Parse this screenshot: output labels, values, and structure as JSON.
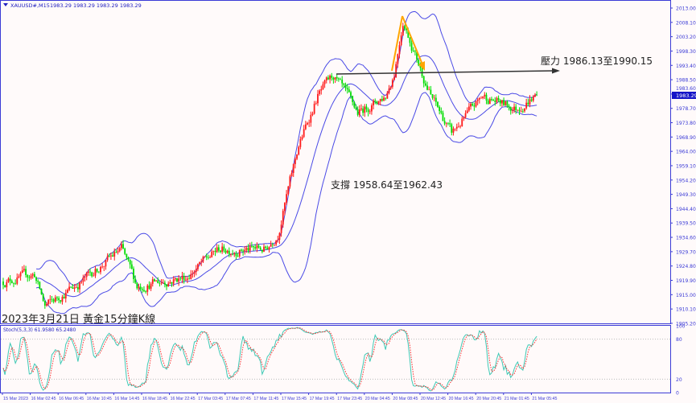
{
  "header": {
    "symbol": "XAUUSD#,M15",
    "ohlc": "1983.29 1983.29 1983.29 1983.29"
  },
  "chart_title": "2023年3月21日 黃金15分鐘K線",
  "indicator_label": "Stoch(5,3,3) 61.9580 65.2480",
  "current_price": "1983.29",
  "colors": {
    "bull": "#ff1a1a",
    "bear": "#00dd00",
    "bands": "#4a4ae6",
    "axis": "#3b3bd6",
    "stoch_main": "#3fc9b5",
    "stoch_signal": "#ff3030",
    "pattern": "#ffa500",
    "resistance_line": "#333333"
  },
  "chart_data": {
    "type": "candlestick",
    "timeframe": "M15",
    "indicators": [
      "Bollinger Bands",
      "Stochastic(5,3,3)"
    ],
    "price_ticks": [
      "2013.00",
      "2008.10",
      "2003.20",
      "1998.30",
      "1993.40",
      "1988.50",
      "1983.60",
      "1978.70",
      "1973.80",
      "1968.90",
      "1964.00",
      "1959.10",
      "1954.20",
      "1949.30",
      "1944.40",
      "1939.50",
      "1934.60",
      "1929.70",
      "1924.80",
      "1919.90",
      "1915.00",
      "1910.10",
      "1905.20"
    ],
    "ylim": [
      1905.2,
      2013.0
    ],
    "stoch_ticks": [
      "100",
      "80",
      "20",
      "0"
    ],
    "time_ticks": [
      "15 Mar 2023",
      "16 Mar 02:45",
      "16 Mar 06:45",
      "16 Mar 10:45",
      "16 Mar 14:45",
      "16 Mar 18:45",
      "16 Mar 22:45",
      "17 Mar 03:45",
      "17 Mar 07:45",
      "17 Mar 11:45",
      "17 Mar 15:45",
      "17 Mar 19:45",
      "17 Mar 23:45",
      "20 Mar 04:45",
      "20 Mar 08:45",
      "20 Mar 12:45",
      "20 Mar 16:45",
      "20 Mar 20:45",
      "21 Mar 01:45",
      "21 Mar 05:45"
    ],
    "approx_close_path": [
      {
        "t": 0,
        "p": 1919.5
      },
      {
        "t": 18,
        "p": 1922
      },
      {
        "t": 24,
        "p": 1911
      },
      {
        "t": 45,
        "p": 1919.5
      },
      {
        "t": 68,
        "p": 1930.5
      },
      {
        "t": 77,
        "p": 1918
      },
      {
        "t": 105,
        "p": 1921
      },
      {
        "t": 124,
        "p": 1930.5
      },
      {
        "t": 151,
        "p": 1930.5
      },
      {
        "t": 158,
        "p": 1936
      },
      {
        "t": 170,
        "p": 1966
      },
      {
        "t": 181,
        "p": 1983
      },
      {
        "t": 190,
        "p": 1989.6
      },
      {
        "t": 204,
        "p": 1977
      },
      {
        "t": 220,
        "p": 1983
      },
      {
        "t": 225,
        "p": 1991
      },
      {
        "t": 230,
        "p": 2009
      },
      {
        "t": 239,
        "p": 1994
      },
      {
        "t": 246,
        "p": 1983
      },
      {
        "t": 258,
        "p": 1970
      },
      {
        "t": 276,
        "p": 1983
      },
      {
        "t": 288,
        "p": 1980
      },
      {
        "t": 295,
        "p": 1978.6
      },
      {
        "t": 307,
        "p": 1983.29
      }
    ],
    "annotations": [
      {
        "text": "壓力 1986.13至1990.15",
        "type": "resistance",
        "level_range": [
          1986.13,
          1990.15
        ]
      },
      {
        "text": "支撐 1958.64至1962.43",
        "type": "support",
        "level_range": [
          1958.64,
          1962.43
        ]
      }
    ]
  }
}
